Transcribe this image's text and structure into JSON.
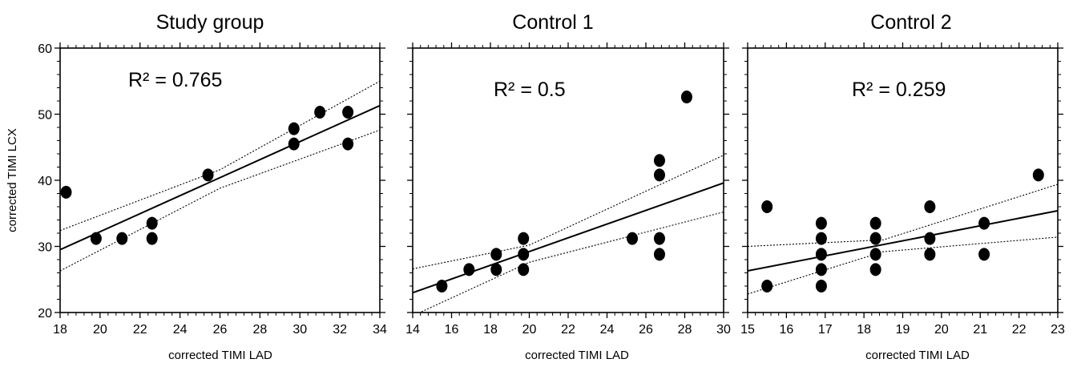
{
  "chart_data": [
    {
      "type": "scatter",
      "title": "Study group",
      "annotation": "R² = 0.765",
      "xlabel": "corrected TIMI LAD",
      "ylabel": "corrected TIMI LCX",
      "xlim": [
        18,
        34
      ],
      "ylim": [
        20,
        60
      ],
      "xticks": [
        "18",
        "20",
        "22",
        "24",
        "26",
        "28",
        "30",
        "32",
        "34"
      ],
      "yticks": [
        "20",
        "30",
        "40",
        "50",
        "60"
      ],
      "points": [
        {
          "x": 18.3,
          "y": 38.2
        },
        {
          "x": 19.8,
          "y": 31.2
        },
        {
          "x": 21.1,
          "y": 31.2
        },
        {
          "x": 22.6,
          "y": 33.5
        },
        {
          "x": 22.6,
          "y": 31.2
        },
        {
          "x": 25.4,
          "y": 40.8
        },
        {
          "x": 29.7,
          "y": 47.8
        },
        {
          "x": 29.7,
          "y": 45.5
        },
        {
          "x": 31.0,
          "y": 50.3
        },
        {
          "x": 32.4,
          "y": 50.3
        },
        {
          "x": 32.4,
          "y": 45.5
        }
      ],
      "fit_line": {
        "x": [
          18,
          34
        ],
        "y": [
          29.5,
          51.3
        ]
      },
      "ci_upper": {
        "x": [
          18,
          26,
          34
        ],
        "y": [
          32.4,
          41.6,
          55.0
        ]
      },
      "ci_lower": {
        "x": [
          18,
          26,
          34
        ],
        "y": [
          26.3,
          38.8,
          47.6
        ]
      },
      "grid": false
    },
    {
      "type": "scatter",
      "title": "Control 1",
      "annotation": "R² = 0.5",
      "xlabel": "corrected TIMI LAD",
      "ylabel": "",
      "xlim": [
        14,
        30
      ],
      "ylim": [
        20,
        60
      ],
      "xticks": [
        "14",
        "16",
        "18",
        "20",
        "22",
        "24",
        "26",
        "28",
        "30"
      ],
      "yticks": [],
      "points": [
        {
          "x": 15.5,
          "y": 24.0
        },
        {
          "x": 16.9,
          "y": 26.5
        },
        {
          "x": 18.3,
          "y": 28.8
        },
        {
          "x": 18.3,
          "y": 26.5
        },
        {
          "x": 19.7,
          "y": 31.2
        },
        {
          "x": 19.7,
          "y": 28.8
        },
        {
          "x": 19.7,
          "y": 26.5
        },
        {
          "x": 25.3,
          "y": 31.2
        },
        {
          "x": 26.7,
          "y": 43.0
        },
        {
          "x": 26.7,
          "y": 40.8
        },
        {
          "x": 26.7,
          "y": 31.2
        },
        {
          "x": 26.7,
          "y": 28.8
        },
        {
          "x": 28.1,
          "y": 52.6
        }
      ],
      "fit_line": {
        "x": [
          14,
          30
        ],
        "y": [
          23.0,
          39.6
        ]
      },
      "ci_upper": {
        "x": [
          14,
          20,
          30
        ],
        "y": [
          26.6,
          30.2,
          43.8
        ]
      },
      "ci_lower": {
        "x": [
          14,
          20,
          30
        ],
        "y": [
          19.5,
          27.6,
          35.2
        ]
      },
      "grid": false
    },
    {
      "type": "scatter",
      "title": "Control 2",
      "annotation": "R² = 0.259",
      "xlabel": "corrected TIMI LAD",
      "ylabel": "",
      "xlim": [
        15,
        23
      ],
      "ylim": [
        20,
        60
      ],
      "xticks": [
        "15",
        "16",
        "17",
        "18",
        "19",
        "20",
        "21",
        "22",
        "23"
      ],
      "yticks": [],
      "points": [
        {
          "x": 15.5,
          "y": 36.0
        },
        {
          "x": 15.5,
          "y": 24.0
        },
        {
          "x": 16.9,
          "y": 33.5
        },
        {
          "x": 16.9,
          "y": 31.2
        },
        {
          "x": 16.9,
          "y": 28.8
        },
        {
          "x": 16.9,
          "y": 26.5
        },
        {
          "x": 16.9,
          "y": 24.0
        },
        {
          "x": 18.3,
          "y": 33.5
        },
        {
          "x": 18.3,
          "y": 31.2
        },
        {
          "x": 18.3,
          "y": 28.8
        },
        {
          "x": 18.3,
          "y": 26.5
        },
        {
          "x": 19.7,
          "y": 36.0
        },
        {
          "x": 19.7,
          "y": 31.2
        },
        {
          "x": 19.7,
          "y": 28.8
        },
        {
          "x": 21.1,
          "y": 33.5
        },
        {
          "x": 21.1,
          "y": 28.8
        },
        {
          "x": 22.5,
          "y": 40.8
        }
      ],
      "fit_line": {
        "x": [
          15,
          23
        ],
        "y": [
          26.3,
          35.4
        ]
      },
      "ci_upper": {
        "x": [
          15,
          18.5,
          23
        ],
        "y": [
          30.0,
          31.0,
          39.4
        ]
      },
      "ci_lower": {
        "x": [
          15,
          18.5,
          23
        ],
        "y": [
          22.8,
          29.2,
          31.4
        ]
      },
      "grid": false
    }
  ]
}
